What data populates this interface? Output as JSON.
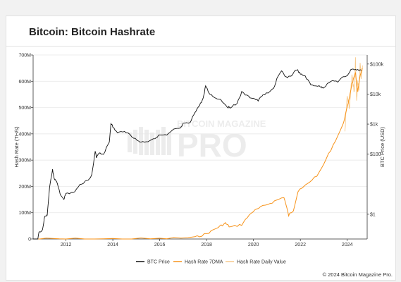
{
  "header": {
    "title": "Bitcoin: Bitcoin Hashrate"
  },
  "watermark": {
    "line1": "BITCOIN MAGAZINE",
    "line2": "PRO"
  },
  "footer": {
    "copyright": "© 2024 Bitcoin Magazine Pro."
  },
  "chart_data": {
    "type": "line",
    "title": "Bitcoin: Bitcoin Hashrate",
    "ylabel": "Hash Rate (TH/s)",
    "y2label": "BTC Price (USD)",
    "xlim": [
      2010.6,
      2024.85
    ],
    "ylim": [
      0,
      700000000
    ],
    "y2lim_log": [
      0.15,
      200000
    ],
    "y2scale": "log",
    "x_ticks": [
      {
        "value": 2012,
        "label": "2012"
      },
      {
        "value": 2014,
        "label": "2014"
      },
      {
        "value": 2016,
        "label": "2016"
      },
      {
        "value": 2018,
        "label": "2018"
      },
      {
        "value": 2020,
        "label": "2020"
      },
      {
        "value": 2022,
        "label": "2022"
      },
      {
        "value": 2024,
        "label": "2024"
      }
    ],
    "y_ticks": [
      {
        "value": 0,
        "label": "0"
      },
      {
        "value": 100000000,
        "label": "100M"
      },
      {
        "value": 200000000,
        "label": "200M"
      },
      {
        "value": 300000000,
        "label": "300M"
      },
      {
        "value": 400000000,
        "label": "400M"
      },
      {
        "value": 500000000,
        "label": "500M"
      },
      {
        "value": 600000000,
        "label": "600M"
      },
      {
        "value": 700000000,
        "label": "700M"
      }
    ],
    "y2_ticks": [
      {
        "value": 1,
        "label": "$1"
      },
      {
        "value": 100,
        "label": "$100"
      },
      {
        "value": 1000,
        "label": "$1k"
      },
      {
        "value": 10000,
        "label": "$10k"
      },
      {
        "value": 100000,
        "label": "$100k"
      }
    ],
    "grid": "horizontal",
    "legend_position": "bottom",
    "colors": {
      "btc_price": "#111111",
      "hash_7dma": "#f7931a",
      "hash_daily": "#f7c98a"
    },
    "series": [
      {
        "name": "BTC Price",
        "axis": "right",
        "x": [
          2010.6,
          2010.75,
          2010.85,
          2011.0,
          2011.1,
          2011.2,
          2011.3,
          2011.43,
          2011.5,
          2011.6,
          2011.75,
          2011.9,
          2012.0,
          2012.3,
          2012.6,
          2012.9,
          2013.1,
          2013.25,
          2013.3,
          2013.4,
          2013.6,
          2013.85,
          2013.92,
          2014.0,
          2014.2,
          2014.5,
          2014.8,
          2015.0,
          2015.2,
          2015.5,
          2015.8,
          2016.0,
          2016.3,
          2016.6,
          2016.9,
          2017.0,
          2017.3,
          2017.5,
          2017.7,
          2017.85,
          2017.96,
          2018.1,
          2018.3,
          2018.6,
          2018.9,
          2019.0,
          2019.3,
          2019.5,
          2019.8,
          2020.0,
          2020.2,
          2020.4,
          2020.7,
          2020.9,
          2021.0,
          2021.2,
          2021.4,
          2021.6,
          2021.85,
          2022.0,
          2022.2,
          2022.45,
          2022.7,
          2022.9,
          2023.0,
          2023.3,
          2023.6,
          2023.8,
          2024.0,
          2024.2,
          2024.4,
          2024.6
        ],
        "values": [
          0.06,
          0.1,
          0.25,
          0.3,
          0.9,
          0.9,
          8,
          30,
          15,
          12,
          5,
          3,
          5,
          5,
          10,
          13,
          20,
          120,
          80,
          110,
          100,
          250,
          1100,
          800,
          500,
          600,
          400,
          300,
          250,
          270,
          350,
          430,
          420,
          650,
          740,
          1000,
          1100,
          2500,
          4200,
          7000,
          19000,
          11000,
          8000,
          6500,
          3700,
          3600,
          5000,
          11500,
          8000,
          7200,
          6000,
          9500,
          11500,
          18000,
          32000,
          58000,
          36000,
          40000,
          67000,
          45000,
          40000,
          20000,
          19000,
          17000,
          16500,
          28000,
          26000,
          35000,
          42000,
          70000,
          63000,
          62000
        ]
      },
      {
        "name": "Hash Rate 7DMA",
        "axis": "left",
        "x": [
          2010.6,
          2012.0,
          2014.0,
          2016.0,
          2017.5,
          2018.0,
          2018.5,
          2018.8,
          2019.0,
          2019.5,
          2019.9,
          2020.3,
          2020.8,
          2021.3,
          2021.5,
          2021.7,
          2021.9,
          2022.3,
          2022.8,
          2023.3,
          2023.8,
          2024.0,
          2024.2,
          2024.35,
          2024.45,
          2024.55,
          2024.65
        ],
        "values": [
          0,
          0,
          100000,
          800000,
          6000000,
          20000000,
          45000000,
          60000000,
          45000000,
          55000000,
          100000000,
          120000000,
          140000000,
          160000000,
          90000000,
          110000000,
          180000000,
          210000000,
          250000000,
          340000000,
          430000000,
          500000000,
          590000000,
          630000000,
          560000000,
          620000000,
          650000000
        ]
      },
      {
        "name": "Hash Rate Daily Value",
        "axis": "left",
        "x": [
          2023.9,
          2024.0,
          2024.1,
          2024.2,
          2024.3,
          2024.35,
          2024.4,
          2024.45,
          2024.5,
          2024.55,
          2024.6,
          2024.65
        ],
        "values": [
          420000000,
          540000000,
          500000000,
          620000000,
          560000000,
          680000000,
          530000000,
          600000000,
          570000000,
          680000000,
          610000000,
          660000000
        ]
      }
    ]
  }
}
